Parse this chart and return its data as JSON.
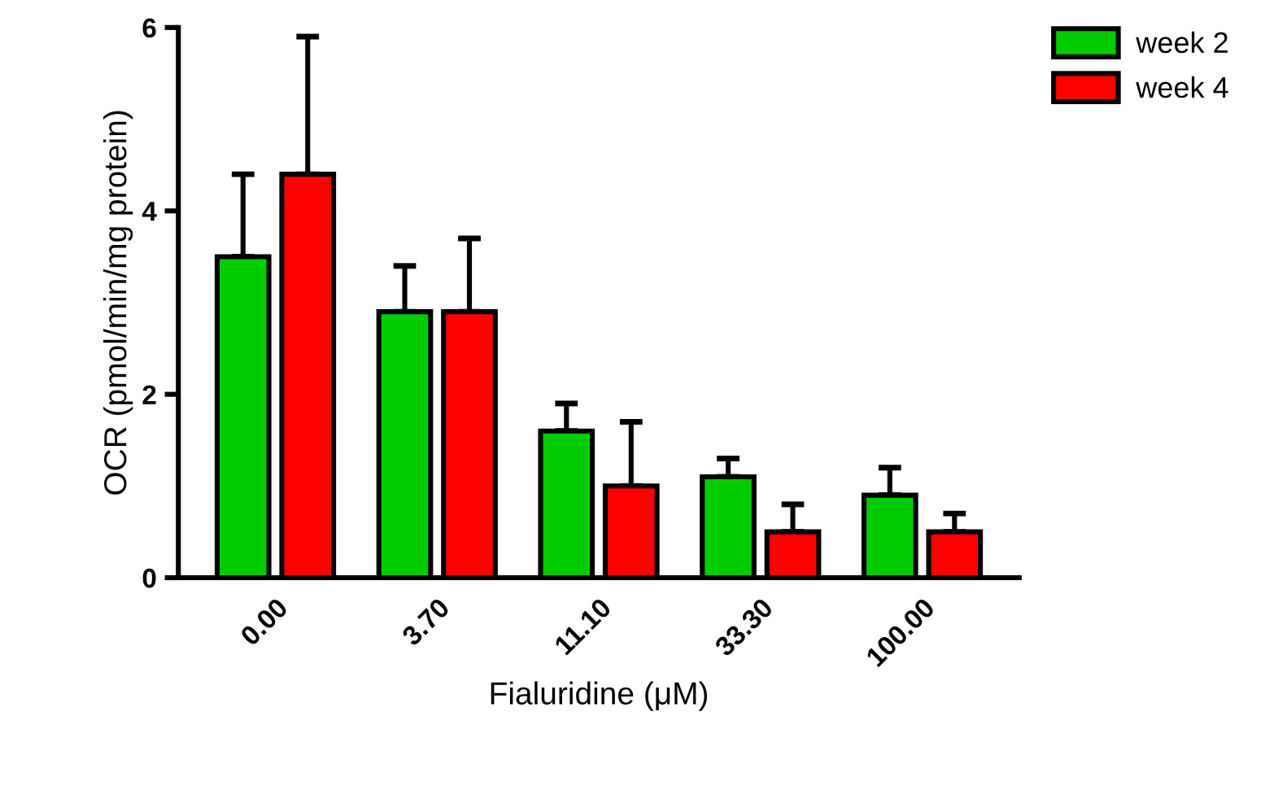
{
  "chart_data": {
    "type": "bar",
    "xlabel": "Fialuridine (μM)",
    "ylabel": "OCR (pmol/min/mg protein)",
    "categories": [
      "0.00",
      "3.70",
      "11.10",
      "33.30",
      "100.00"
    ],
    "series": [
      {
        "name": "week 2",
        "color": "#00cc00",
        "values": [
          3.5,
          2.9,
          1.6,
          1.1,
          0.9
        ],
        "errors": [
          [
            3.5,
            4.4
          ],
          [
            2.9,
            3.4
          ],
          [
            1.6,
            1.9
          ],
          [
            1.1,
            1.3
          ],
          [
            0.9,
            1.2
          ]
        ]
      },
      {
        "name": "week 4",
        "color": "#ff0000",
        "values": [
          4.4,
          2.9,
          1.0,
          0.5,
          0.5
        ],
        "errors": [
          [
            4.4,
            5.9
          ],
          [
            2.9,
            3.7
          ],
          [
            1.0,
            1.7
          ],
          [
            0.5,
            0.8
          ],
          [
            0.5,
            0.7
          ]
        ]
      }
    ],
    "ylim": [
      0,
      6
    ],
    "yticks": [
      0,
      2,
      4,
      6
    ],
    "grid": false,
    "legend": "top right"
  }
}
